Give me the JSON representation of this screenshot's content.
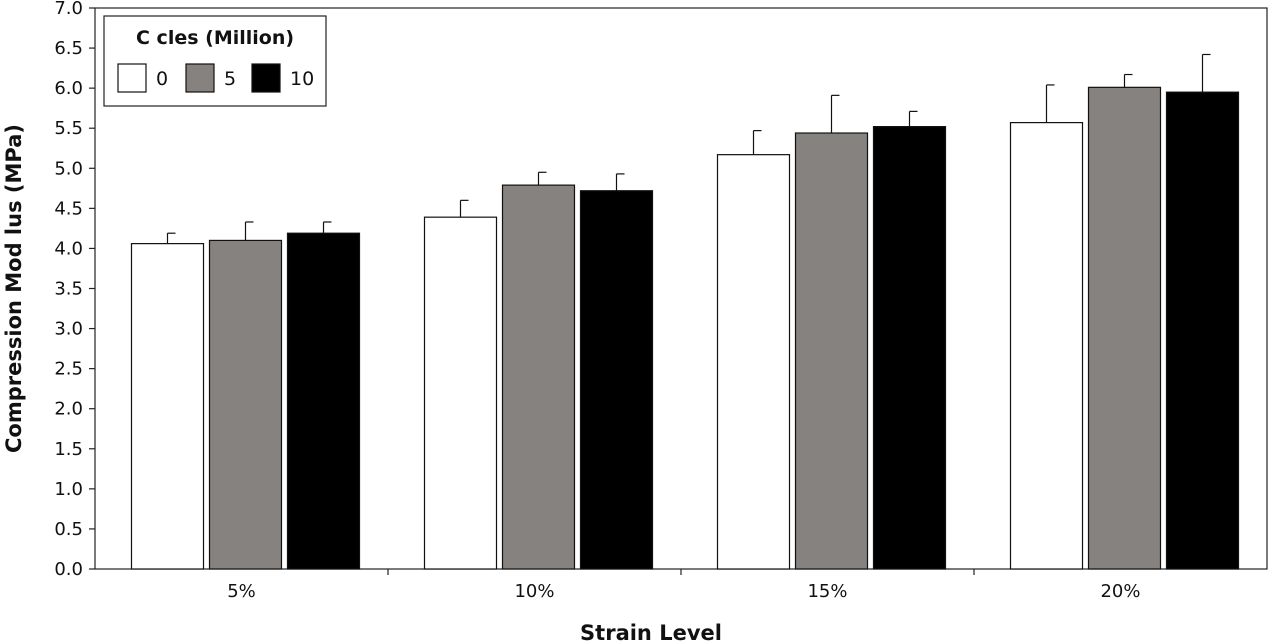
{
  "chart_data": {
    "type": "bar",
    "title": "",
    "xlabel": "Strain Level",
    "ylabel": "Compression Mod  lus (MPa)",
    "ylim": [
      0.0,
      7.0
    ],
    "yticks": [
      "0.0",
      "0.5",
      "1.0",
      "1.5",
      "2.0",
      "2.5",
      "3.0",
      "3.5",
      "4.0",
      "4.5",
      "5.0",
      "5.5",
      "6.0",
      "6.5",
      "7.0"
    ],
    "categories": [
      "5%",
      "10%",
      "15%",
      "20%"
    ],
    "legend": {
      "title": "C  cles (Million)",
      "position": "top-left"
    },
    "series": [
      {
        "name": "0",
        "color": "#ffffff",
        "values": [
          4.06,
          4.39,
          5.17,
          5.57
        ],
        "errors": [
          0.13,
          0.21,
          0.3,
          0.47
        ]
      },
      {
        "name": "5",
        "color": "#858280",
        "values": [
          4.1,
          4.79,
          5.44,
          6.01
        ],
        "errors": [
          0.23,
          0.16,
          0.47,
          0.16
        ]
      },
      {
        "name": "10",
        "color": "#000000",
        "values": [
          4.19,
          4.72,
          5.52,
          5.95
        ],
        "errors": [
          0.14,
          0.21,
          0.19,
          0.47
        ]
      }
    ],
    "grid": false
  }
}
